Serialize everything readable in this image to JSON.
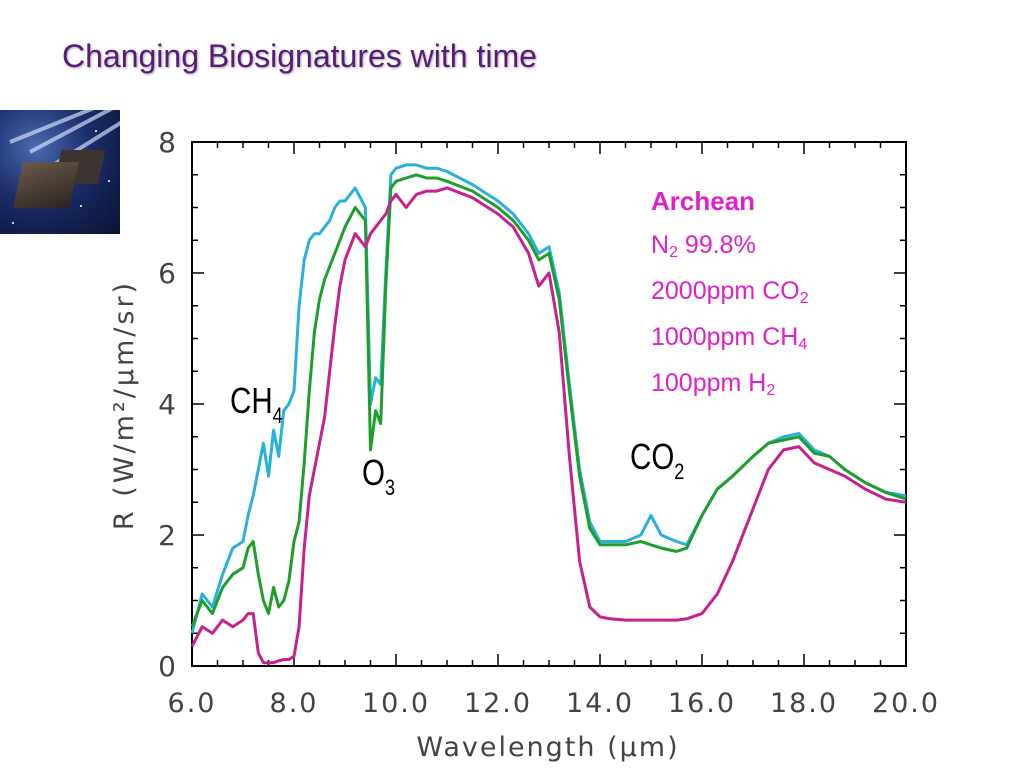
{
  "slide": {
    "title": "Changing Biosignatures with time"
  },
  "annotations": {
    "ch4": {
      "base": "CH",
      "sub": "4"
    },
    "o3": {
      "base": "O",
      "sub": "3"
    },
    "co2": {
      "base": "CO",
      "sub": "2"
    }
  },
  "atmosphere": {
    "heading": "Archean",
    "n2": {
      "base": "N",
      "sub": "2",
      "rest": " 99.8%"
    },
    "co2": {
      "pre": "2000ppm CO",
      "sub": "2"
    },
    "ch4": {
      "pre": "1000ppm CH",
      "sub": "4"
    },
    "h2": {
      "pre": "100ppm H",
      "sub": "2"
    }
  },
  "chart_data": {
    "type": "line",
    "xlabel": "Wavelength (µm)",
    "ylabel": "R (W/m²/µm/sr)",
    "xlim": [
      6.0,
      20.0
    ],
    "ylim": [
      0,
      8
    ],
    "x_ticks": [
      "6.0",
      "8.0",
      "10.0",
      "12.0",
      "14.0",
      "16.0",
      "18.0",
      "20.0"
    ],
    "y_ticks": [
      "0",
      "2",
      "4",
      "6",
      "8"
    ],
    "grid": false,
    "legend": "none",
    "series": [
      {
        "color": "#2ab0dc",
        "x": [
          6.0,
          6.2,
          6.4,
          6.6,
          6.8,
          7.0,
          7.1,
          7.2,
          7.3,
          7.4,
          7.5,
          7.6,
          7.7,
          7.8,
          7.9,
          8.0,
          8.1,
          8.2,
          8.3,
          8.4,
          8.5,
          8.6,
          8.7,
          8.8,
          8.9,
          9.0,
          9.2,
          9.4,
          9.5,
          9.6,
          9.7,
          9.8,
          9.9,
          10.0,
          10.2,
          10.4,
          10.6,
          10.8,
          11.0,
          11.5,
          12.0,
          12.3,
          12.6,
          12.8,
          13.0,
          13.2,
          13.4,
          13.6,
          13.8,
          14.0,
          14.2,
          14.5,
          14.8,
          15.0,
          15.2,
          15.5,
          15.7,
          16.0,
          16.3,
          16.6,
          17.0,
          17.3,
          17.6,
          17.9,
          18.2,
          18.5,
          18.8,
          19.2,
          19.6,
          20.0
        ],
        "y": [
          0.5,
          1.1,
          0.9,
          1.4,
          1.8,
          1.9,
          2.3,
          2.6,
          3.0,
          3.4,
          2.9,
          3.6,
          3.2,
          3.9,
          4.0,
          4.2,
          5.5,
          6.2,
          6.5,
          6.6,
          6.6,
          6.7,
          6.8,
          7.0,
          7.1,
          7.1,
          7.3,
          7.0,
          4.0,
          4.4,
          4.3,
          6.0,
          7.5,
          7.6,
          7.65,
          7.65,
          7.6,
          7.6,
          7.55,
          7.35,
          7.1,
          6.9,
          6.6,
          6.3,
          6.4,
          5.7,
          4.3,
          3.0,
          2.2,
          1.9,
          1.9,
          1.9,
          2.0,
          2.3,
          2.0,
          1.9,
          1.85,
          2.3,
          2.7,
          2.9,
          3.2,
          3.4,
          3.5,
          3.55,
          3.3,
          3.2,
          3.0,
          2.8,
          2.65,
          2.6
        ]
      },
      {
        "color": "#1e9e2a",
        "x": [
          6.0,
          6.2,
          6.4,
          6.6,
          6.8,
          7.0,
          7.1,
          7.2,
          7.3,
          7.4,
          7.5,
          7.6,
          7.7,
          7.8,
          7.9,
          8.0,
          8.1,
          8.2,
          8.3,
          8.4,
          8.5,
          8.6,
          8.7,
          8.8,
          8.9,
          9.0,
          9.2,
          9.4,
          9.5,
          9.6,
          9.7,
          9.8,
          9.9,
          10.0,
          10.2,
          10.4,
          10.6,
          10.8,
          11.0,
          11.5,
          12.0,
          12.3,
          12.6,
          12.8,
          13.0,
          13.2,
          13.4,
          13.6,
          13.8,
          14.0,
          14.2,
          14.5,
          14.8,
          15.0,
          15.2,
          15.5,
          15.7,
          16.0,
          16.3,
          16.6,
          17.0,
          17.3,
          17.6,
          17.9,
          18.2,
          18.5,
          18.8,
          19.2,
          19.6,
          20.0
        ],
        "y": [
          0.6,
          1.0,
          0.8,
          1.2,
          1.4,
          1.5,
          1.8,
          1.9,
          1.4,
          1.0,
          0.8,
          1.2,
          0.9,
          1.0,
          1.3,
          1.9,
          2.2,
          3.1,
          4.2,
          5.1,
          5.6,
          5.9,
          6.1,
          6.3,
          6.5,
          6.7,
          7.0,
          6.8,
          3.3,
          3.9,
          3.7,
          5.8,
          7.3,
          7.4,
          7.45,
          7.5,
          7.45,
          7.45,
          7.4,
          7.25,
          7.0,
          6.8,
          6.5,
          6.2,
          6.3,
          5.6,
          4.2,
          2.9,
          2.1,
          1.85,
          1.85,
          1.85,
          1.9,
          1.85,
          1.8,
          1.75,
          1.8,
          2.3,
          2.7,
          2.9,
          3.2,
          3.4,
          3.45,
          3.5,
          3.25,
          3.2,
          3.0,
          2.8,
          2.65,
          2.55
        ]
      },
      {
        "color": "#c8208e",
        "x": [
          6.0,
          6.2,
          6.4,
          6.6,
          6.8,
          7.0,
          7.1,
          7.2,
          7.3,
          7.4,
          7.5,
          7.6,
          7.7,
          7.8,
          7.9,
          8.0,
          8.1,
          8.2,
          8.3,
          8.4,
          8.5,
          8.6,
          8.7,
          8.8,
          8.9,
          9.0,
          9.2,
          9.4,
          9.5,
          9.6,
          9.7,
          9.8,
          9.9,
          10.0,
          10.2,
          10.4,
          10.6,
          10.8,
          11.0,
          11.5,
          12.0,
          12.3,
          12.6,
          12.8,
          13.0,
          13.2,
          13.4,
          13.6,
          13.8,
          14.0,
          14.2,
          14.5,
          14.8,
          15.0,
          15.2,
          15.5,
          15.7,
          16.0,
          16.3,
          16.6,
          17.0,
          17.3,
          17.6,
          17.9,
          18.2,
          18.5,
          18.8,
          19.2,
          19.6,
          20.0
        ],
        "y": [
          0.3,
          0.6,
          0.5,
          0.7,
          0.6,
          0.7,
          0.8,
          0.8,
          0.2,
          0.05,
          0.05,
          0.05,
          0.08,
          0.1,
          0.1,
          0.15,
          0.6,
          1.8,
          2.6,
          3.0,
          3.4,
          3.8,
          4.5,
          5.2,
          5.8,
          6.2,
          6.6,
          6.4,
          6.6,
          6.7,
          6.8,
          6.9,
          7.1,
          7.2,
          7.0,
          7.2,
          7.25,
          7.25,
          7.3,
          7.15,
          6.9,
          6.7,
          6.3,
          5.8,
          6.0,
          5.1,
          3.2,
          1.6,
          0.9,
          0.75,
          0.72,
          0.7,
          0.7,
          0.7,
          0.7,
          0.7,
          0.72,
          0.8,
          1.1,
          1.6,
          2.4,
          3.0,
          3.3,
          3.35,
          3.1,
          3.0,
          2.9,
          2.7,
          2.55,
          2.5
        ]
      }
    ]
  }
}
